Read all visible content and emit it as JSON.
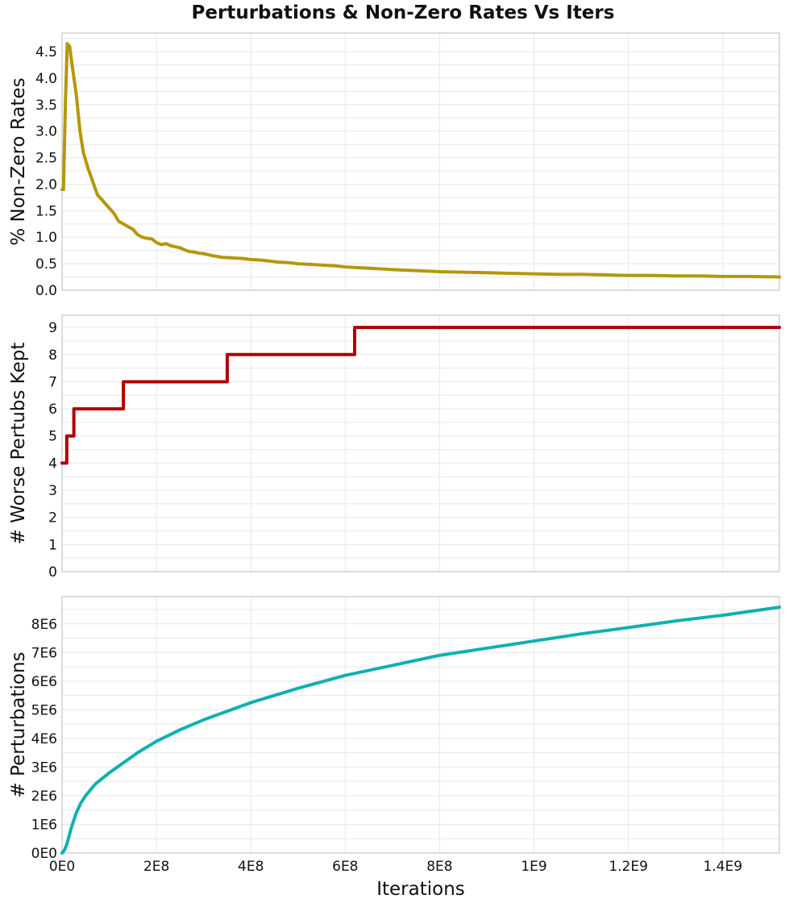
{
  "chart_data": {
    "type": "line",
    "title": "Perturbations & Non-Zero Rates Vs Iters",
    "xlabel": "Iterations",
    "xlim": [
      0,
      1520000000
    ],
    "x_ticks": [
      {
        "value": 0,
        "label": "0E0"
      },
      {
        "value": 200000000,
        "label": "2E8"
      },
      {
        "value": 400000000,
        "label": "4E8"
      },
      {
        "value": 600000000,
        "label": "6E8"
      },
      {
        "value": 800000000,
        "label": "8E8"
      },
      {
        "value": 1000000000,
        "label": "1E9"
      },
      {
        "value": 1200000000,
        "label": "1.2E9"
      },
      {
        "value": 1400000000,
        "label": "1.4E9"
      }
    ],
    "grid": true,
    "panels": [
      {
        "ylabel": "% Non-Zero Rates",
        "ylim": [
          0,
          4.85
        ],
        "y_ticks": [
          {
            "value": 0,
            "label": "0.0"
          },
          {
            "value": 0.5,
            "label": "0.5"
          },
          {
            "value": 1,
            "label": "1.0"
          },
          {
            "value": 1.5,
            "label": "1.5"
          },
          {
            "value": 2,
            "label": "2.0"
          },
          {
            "value": 2.5,
            "label": "2.5"
          },
          {
            "value": 3,
            "label": "3.0"
          },
          {
            "value": 3.5,
            "label": "3.5"
          },
          {
            "value": 4,
            "label": "4.0"
          },
          {
            "value": 4.5,
            "label": "4.5"
          }
        ],
        "color": "#b5970b",
        "step": false,
        "x": [
          0,
          3000000,
          7000000,
          11000000,
          16000000,
          22000000,
          30000000,
          38000000,
          45000000,
          55000000,
          65000000,
          75000000,
          90000000,
          100000000,
          110000000,
          120000000,
          130000000,
          140000000,
          150000000,
          160000000,
          170000000,
          180000000,
          190000000,
          200000000,
          210000000,
          220000000,
          230000000,
          240000000,
          250000000,
          260000000,
          270000000,
          280000000,
          290000000,
          300000000,
          320000000,
          340000000,
          360000000,
          380000000,
          400000000,
          420000000,
          440000000,
          460000000,
          480000000,
          500000000,
          520000000,
          540000000,
          560000000,
          580000000,
          600000000,
          620000000,
          640000000,
          660000000,
          680000000,
          700000000,
          750000000,
          800000000,
          850000000,
          900000000,
          950000000,
          1000000000,
          1050000000,
          1100000000,
          1150000000,
          1200000000,
          1250000000,
          1300000000,
          1350000000,
          1400000000,
          1450000000,
          1520000000
        ],
        "y": [
          1.9,
          1.9,
          3.5,
          4.65,
          4.6,
          4.2,
          3.7,
          3.0,
          2.6,
          2.3,
          2.05,
          1.8,
          1.65,
          1.55,
          1.45,
          1.3,
          1.25,
          1.2,
          1.15,
          1.05,
          1.0,
          0.98,
          0.97,
          0.9,
          0.86,
          0.88,
          0.84,
          0.82,
          0.8,
          0.76,
          0.73,
          0.72,
          0.7,
          0.69,
          0.65,
          0.62,
          0.61,
          0.6,
          0.58,
          0.57,
          0.55,
          0.53,
          0.52,
          0.5,
          0.49,
          0.48,
          0.47,
          0.46,
          0.44,
          0.43,
          0.42,
          0.41,
          0.4,
          0.39,
          0.37,
          0.35,
          0.34,
          0.33,
          0.32,
          0.31,
          0.3,
          0.3,
          0.29,
          0.28,
          0.28,
          0.27,
          0.27,
          0.26,
          0.26,
          0.25
        ]
      },
      {
        "ylabel": "# Worse Pertubs Kept",
        "ylim": [
          0,
          9.45
        ],
        "y_ticks": [
          {
            "value": 0,
            "label": "0"
          },
          {
            "value": 1,
            "label": "1"
          },
          {
            "value": 2,
            "label": "2"
          },
          {
            "value": 3,
            "label": "3"
          },
          {
            "value": 4,
            "label": "4"
          },
          {
            "value": 5,
            "label": "5"
          },
          {
            "value": 6,
            "label": "6"
          },
          {
            "value": 7,
            "label": "7"
          },
          {
            "value": 8,
            "label": "8"
          },
          {
            "value": 9,
            "label": "9"
          }
        ],
        "color": "#b00000",
        "step": true,
        "x": [
          0,
          10000000,
          25000000,
          35000000,
          130000000,
          350000000,
          620000000,
          1520000000
        ],
        "y": [
          4,
          5,
          6,
          6,
          7,
          8,
          9,
          9
        ]
      },
      {
        "ylabel": "# Perturbations",
        "ylim": [
          0,
          8950000
        ],
        "y_ticks": [
          {
            "value": 0,
            "label": "0E0"
          },
          {
            "value": 1000000,
            "label": "1E6"
          },
          {
            "value": 2000000,
            "label": "2E6"
          },
          {
            "value": 3000000,
            "label": "3E6"
          },
          {
            "value": 4000000,
            "label": "4E6"
          },
          {
            "value": 5000000,
            "label": "5E6"
          },
          {
            "value": 6000000,
            "label": "6E6"
          },
          {
            "value": 7000000,
            "label": "7E6"
          },
          {
            "value": 8000000,
            "label": "8E6"
          }
        ],
        "color": "#10b0b0",
        "step": false,
        "x": [
          0,
          5000000,
          10000000,
          20000000,
          30000000,
          40000000,
          50000000,
          70000000,
          100000000,
          130000000,
          160000000,
          200000000,
          250000000,
          300000000,
          350000000,
          400000000,
          450000000,
          500000000,
          600000000,
          700000000,
          800000000,
          900000000,
          1000000000,
          1100000000,
          1200000000,
          1300000000,
          1400000000,
          1520000000
        ],
        "y": [
          0,
          100000,
          300000,
          900000,
          1400000,
          1750000,
          2000000,
          2400000,
          2800000,
          3150000,
          3500000,
          3900000,
          4300000,
          4650000,
          4950000,
          5250000,
          5500000,
          5750000,
          6200000,
          6550000,
          6900000,
          7150000,
          7400000,
          7650000,
          7870000,
          8100000,
          8300000,
          8580000
        ]
      }
    ]
  }
}
